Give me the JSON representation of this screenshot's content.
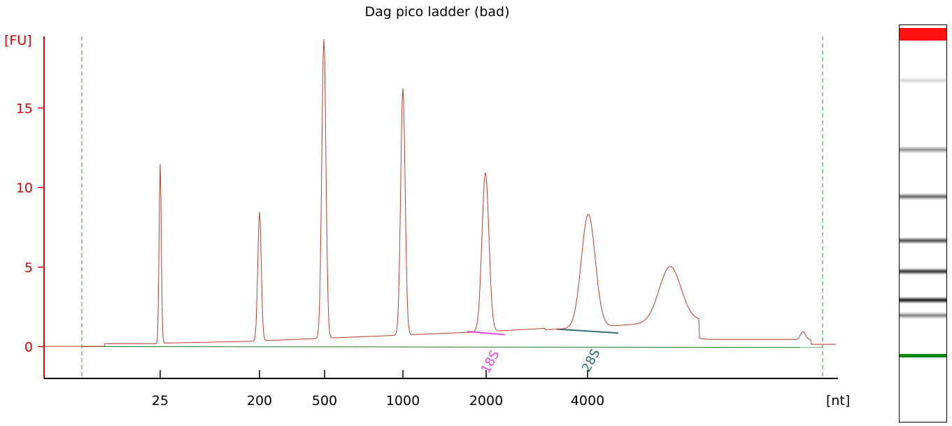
{
  "title": "Dag pico ladder (bad)",
  "colors": {
    "trace": "#c0392b",
    "axis_y": "#dd0000",
    "baseline": "#1f7a1f",
    "marker_18s": "#ee44ee",
    "marker_28s": "#2f6f78",
    "gel_top": "#ff1111",
    "gel_marker": "#118811"
  },
  "chart_data": {
    "type": "line",
    "title": "Dag pico ladder (bad)",
    "ylabel": "[FU]",
    "xlabel": "[nt]",
    "ylim": [
      -2,
      19.5
    ],
    "yticks": [
      0,
      5,
      10,
      15
    ],
    "xtick_labels": [
      "25",
      "200",
      "500",
      "1000",
      "2000",
      "4000"
    ],
    "grid": false,
    "series": [
      {
        "peaks": [
          {
            "size": "25",
            "height": 11.6
          },
          {
            "size": "200",
            "height": 8.4
          },
          {
            "size": "500",
            "height": 19.1
          },
          {
            "size": "1000",
            "height": 15.8
          },
          {
            "size": "2000",
            "height": 10.3
          },
          {
            "size": "4000",
            "height": 7.4
          },
          {
            "size": "6000",
            "height": 3.8
          }
        ],
        "baseline_level": 0.3
      }
    ],
    "annotations": [
      {
        "label": "18S",
        "x_size": "2000",
        "color": "#ee44ee"
      },
      {
        "label": "28S",
        "x_size": "4000",
        "color": "#2f6f78"
      }
    ]
  },
  "gel": {
    "bands": [
      {
        "level": 0.05,
        "intensity": 0.15
      },
      {
        "level": 0.32,
        "intensity": 0.45
      },
      {
        "level": 0.5,
        "intensity": 0.6
      },
      {
        "level": 0.67,
        "intensity": 0.7
      },
      {
        "level": 0.79,
        "intensity": 0.8
      },
      {
        "level": 0.9,
        "intensity": 0.92
      },
      {
        "level": 0.96,
        "intensity": 0.5
      }
    ]
  }
}
